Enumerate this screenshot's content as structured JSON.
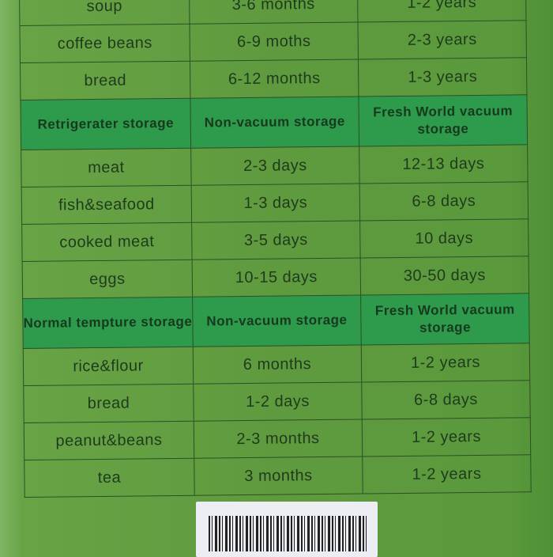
{
  "sections": [
    {
      "header": null,
      "rows": [
        [
          "soup",
          "3-6 months",
          "1-2 years"
        ],
        [
          "coffee  beans",
          "6-9 moths",
          "2-3 years"
        ],
        [
          "bread",
          "6-12 months",
          "1-3 years"
        ]
      ]
    },
    {
      "header": [
        "Retrigerater storage",
        "Non-vacuum storage",
        "Fresh World vacuum storage"
      ],
      "rows": [
        [
          "meat",
          "2-3 days",
          "12-13 days"
        ],
        [
          "fish&seafood",
          "1-3 days",
          "6-8 days"
        ],
        [
          "cooked meat",
          "3-5 days",
          "10 days"
        ],
        [
          "eggs",
          "10-15 days",
          "30-50 days"
        ]
      ]
    },
    {
      "header": [
        "Normal tempture storage",
        "Non-vacuum storage",
        "Fresh World vacuum storage"
      ],
      "rows": [
        [
          "rice&flour",
          "6 months",
          "1-2 years"
        ],
        [
          "bread",
          "1-2 days",
          "6-8 days"
        ],
        [
          "peanut&beans",
          "2-3 months",
          "1-2 years"
        ],
        [
          "tea",
          "3 months",
          "1-2 years"
        ]
      ]
    }
  ],
  "colors": {
    "box": "#5f9a3e",
    "header": "#2d9a4c",
    "lines": "#2c4f27",
    "label": "#eceef3"
  }
}
